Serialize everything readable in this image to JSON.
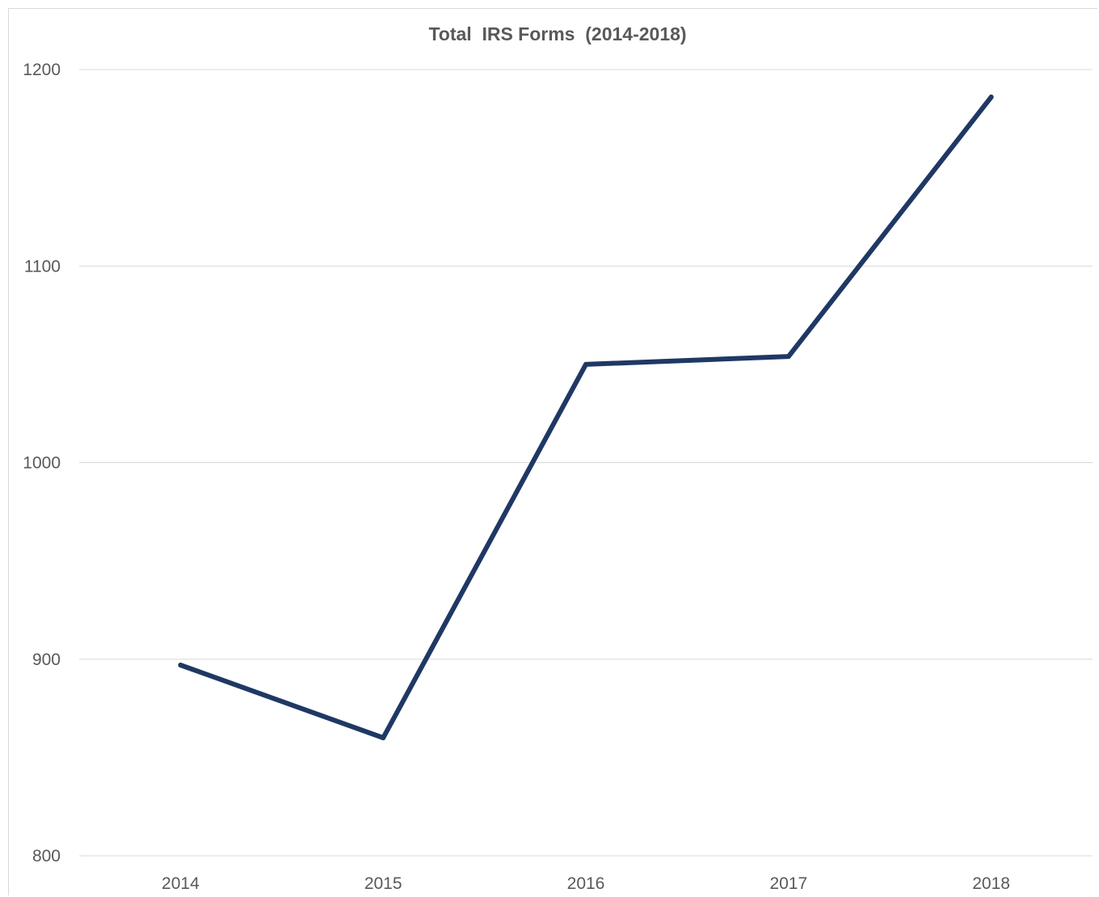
{
  "chart_data": {
    "type": "line",
    "title": "Total  IRS Forms  (2014-2018)",
    "xlabel": "",
    "ylabel": "",
    "categories": [
      "2014",
      "2015",
      "2016",
      "2017",
      "2018"
    ],
    "series": [
      {
        "values": [
          897,
          860,
          1050,
          1054,
          1186
        ],
        "color": "#1f3864"
      }
    ],
    "ylim": [
      800,
      1200
    ],
    "yticks": [
      "800",
      "900",
      "1000",
      "1100",
      "1200"
    ],
    "grid": true,
    "legend": "none"
  }
}
